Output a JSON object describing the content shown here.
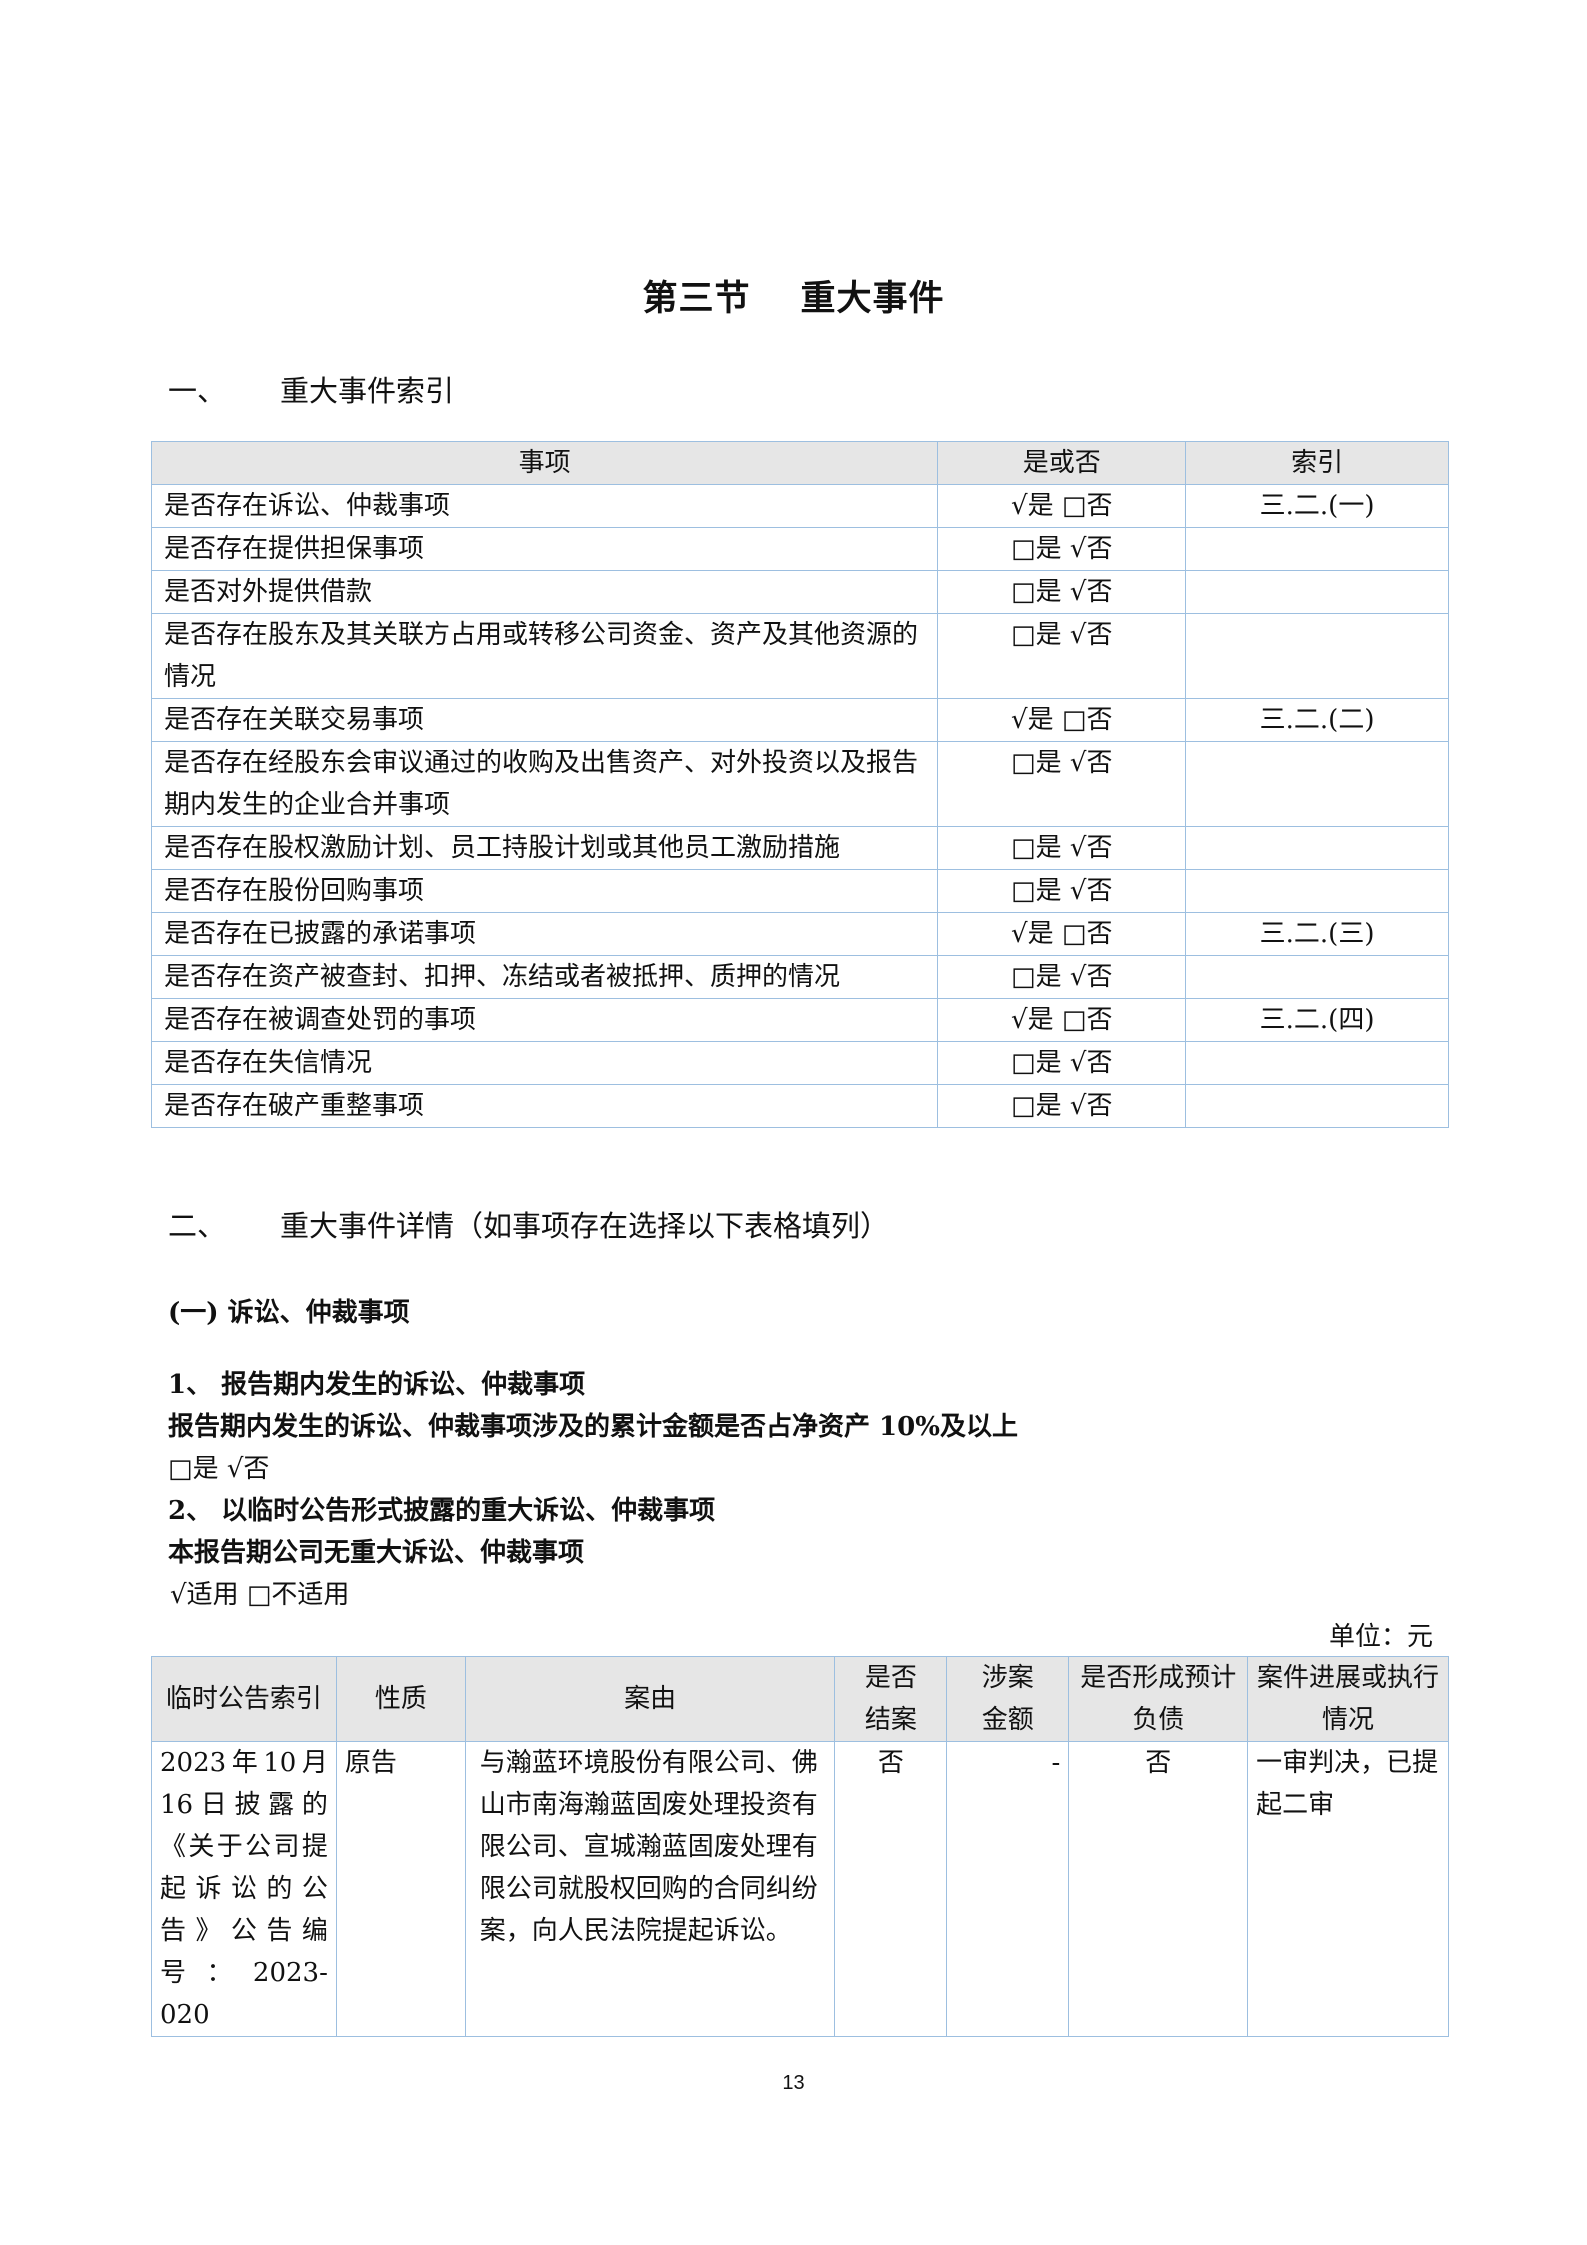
{
  "title": {
    "part1": "第三节",
    "part2": "重大事件"
  },
  "section1": {
    "num": "一、",
    "title": "重大事件索引"
  },
  "index_table": {
    "headers": [
      "事项",
      "是或否",
      "索引"
    ],
    "rows": [
      {
        "item": "是否存在诉讼、仲裁事项",
        "answer": "√是 □否",
        "index": "三.二.(一)"
      },
      {
        "item": "是否存在提供担保事项",
        "answer": "□是 √否",
        "index": ""
      },
      {
        "item": "是否对外提供借款",
        "answer": "□是 √否",
        "index": ""
      },
      {
        "item": "是否存在股东及其关联方占用或转移公司资金、资产及其他资源的情况",
        "answer": "□是 √否",
        "index": ""
      },
      {
        "item": "是否存在关联交易事项",
        "answer": "√是 □否",
        "index": "三.二.(二)"
      },
      {
        "item": "是否存在经股东会审议通过的收购及出售资产、对外投资以及报告期内发生的企业合并事项",
        "answer": "□是 √否",
        "index": ""
      },
      {
        "item": "是否存在股权激励计划、员工持股计划或其他员工激励措施",
        "answer": "□是 √否",
        "index": ""
      },
      {
        "item": "是否存在股份回购事项",
        "answer": "□是 √否",
        "index": ""
      },
      {
        "item": "是否存在已披露的承诺事项",
        "answer": "√是 □否",
        "index": "三.二.(三)"
      },
      {
        "item": "是否存在资产被查封、扣押、冻结或者被抵押、质押的情况",
        "answer": "□是 √否",
        "index": ""
      },
      {
        "item": "是否存在被调查处罚的事项",
        "answer": "√是 □否",
        "index": "三.二.(四)"
      },
      {
        "item": "是否存在失信情况",
        "answer": "□是 √否",
        "index": ""
      },
      {
        "item": "是否存在破产重整事项",
        "answer": "□是 √否",
        "index": ""
      }
    ]
  },
  "section2": {
    "num": "二、",
    "title": "重大事件详情（如事项存在选择以下表格填列）"
  },
  "sub1": {
    "title": "(一) 诉讼、仲裁事项"
  },
  "p1": "1、 报告期内发生的诉讼、仲裁事项",
  "p2": "报告期内发生的诉讼、仲裁事项涉及的累计金额是否占净资产 10%及以上",
  "p3": "□是 √否",
  "p4": "2、 以临时公告形式披露的重大诉讼、仲裁事项",
  "p5": "本报告期公司无重大诉讼、仲裁事项",
  "p6": "√适用 □不适用",
  "unit": "单位：元",
  "lawsuit_table": {
    "headers": [
      "临时公告索引",
      "性质",
      "案由",
      "是否结案",
      "涉案金额",
      "是否形成预计负债",
      "案件进展或执行情况"
    ],
    "rows": [
      {
        "ref": "2023年10月16日披露的《关于公司提起诉讼的公告》公告编号：2023-020",
        "nature": "原告",
        "cause": "与瀚蓝环境股份有限公司、佛山市南海瀚蓝固废处理投资有限公司、宣城瀚蓝固废处理有限公司就股权回购的合同纠纷案，向人民法院提起诉讼。",
        "closed": "否",
        "amount": "-",
        "liability": "否",
        "progress": "一审判决，已提起二审"
      }
    ]
  },
  "page_number": "13"
}
